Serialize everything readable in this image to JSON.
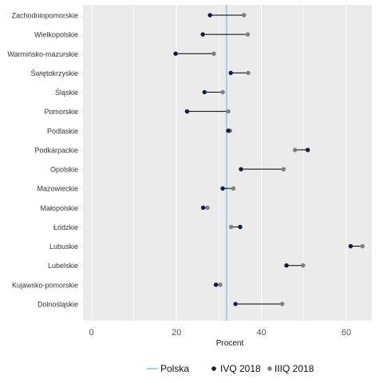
{
  "chart_data": {
    "type": "dumbbell",
    "xlabel": "Procent",
    "xlim": [
      -2,
      66
    ],
    "xticks": [
      0,
      20,
      40,
      60
    ],
    "grid": true,
    "legend_position": "bottom",
    "reference": {
      "name": "Polska",
      "value": 31.8,
      "color": "#9fd3e6"
    },
    "series": [
      {
        "name": "IVQ 2018",
        "color": "#0d1a4a"
      },
      {
        "name": "IIIQ 2018",
        "color": "#7f7f7f"
      }
    ],
    "categories": [
      "Zachodniopomorskie",
      "Wielkopolskie",
      "Warmińsko-mazurskie",
      "Świętokrzyskie",
      "Śląskie",
      "Pomorskie",
      "Podlaskie",
      "Podkarpackie",
      "Opolskie",
      "Mazowieckie",
      "Małopolskie",
      "Łódzkie",
      "Lubuskie",
      "Lubelskie",
      "Kujawsko-pomorskie",
      "Dolnośląskie"
    ],
    "ivq_2018": [
      27.9,
      26.2,
      19.8,
      32.8,
      26.6,
      22.5,
      32.2,
      50.9,
      35.2,
      30.9,
      26.3,
      35.0,
      61.0,
      45.9,
      29.3,
      33.9
    ],
    "iiiq_2018": [
      35.9,
      36.8,
      28.8,
      36.9,
      30.9,
      32.2,
      32.6,
      47.9,
      45.2,
      33.4,
      27.3,
      32.9,
      63.8,
      49.8,
      30.3,
      44.9
    ]
  }
}
